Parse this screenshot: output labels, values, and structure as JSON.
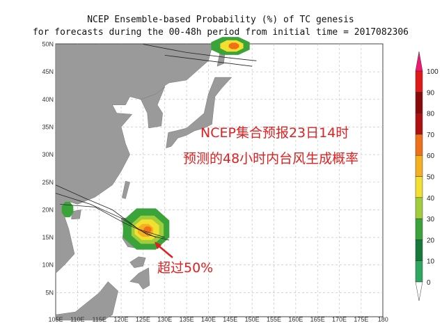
{
  "title": {
    "line1": "NCEP Ensemble-based Probability (%) of TC genesis",
    "line2": "for forecasts during the 00-48h period from initial time = 2017082306"
  },
  "annotations": {
    "main1": "NCEP集合预报23日14时",
    "main2": "预测的48小时内台风生成概率",
    "arrow": "超过50%"
  },
  "lon_labels": [
    "105E",
    "110E",
    "115E",
    "120E",
    "125E",
    "130E",
    "135E",
    "140E",
    "145E",
    "150E",
    "155E",
    "160E",
    "165E",
    "170E",
    "175E",
    "180"
  ],
  "lat_labels": [
    "5N",
    "10N",
    "15N",
    "20N",
    "25N",
    "30N",
    "35N",
    "40N",
    "45N",
    "50N"
  ],
  "colorbar": {
    "labels": [
      0,
      10,
      20,
      30,
      40,
      50,
      60,
      70,
      80,
      90,
      100
    ],
    "colors": [
      "#2ea860",
      "#157a3a",
      "#3aa43a",
      "#9fce3a",
      "#f2e030",
      "#f5b020",
      "#f07018",
      "#b01010",
      "#8a0a0a",
      "#e01818",
      "#f01870"
    ]
  }
}
